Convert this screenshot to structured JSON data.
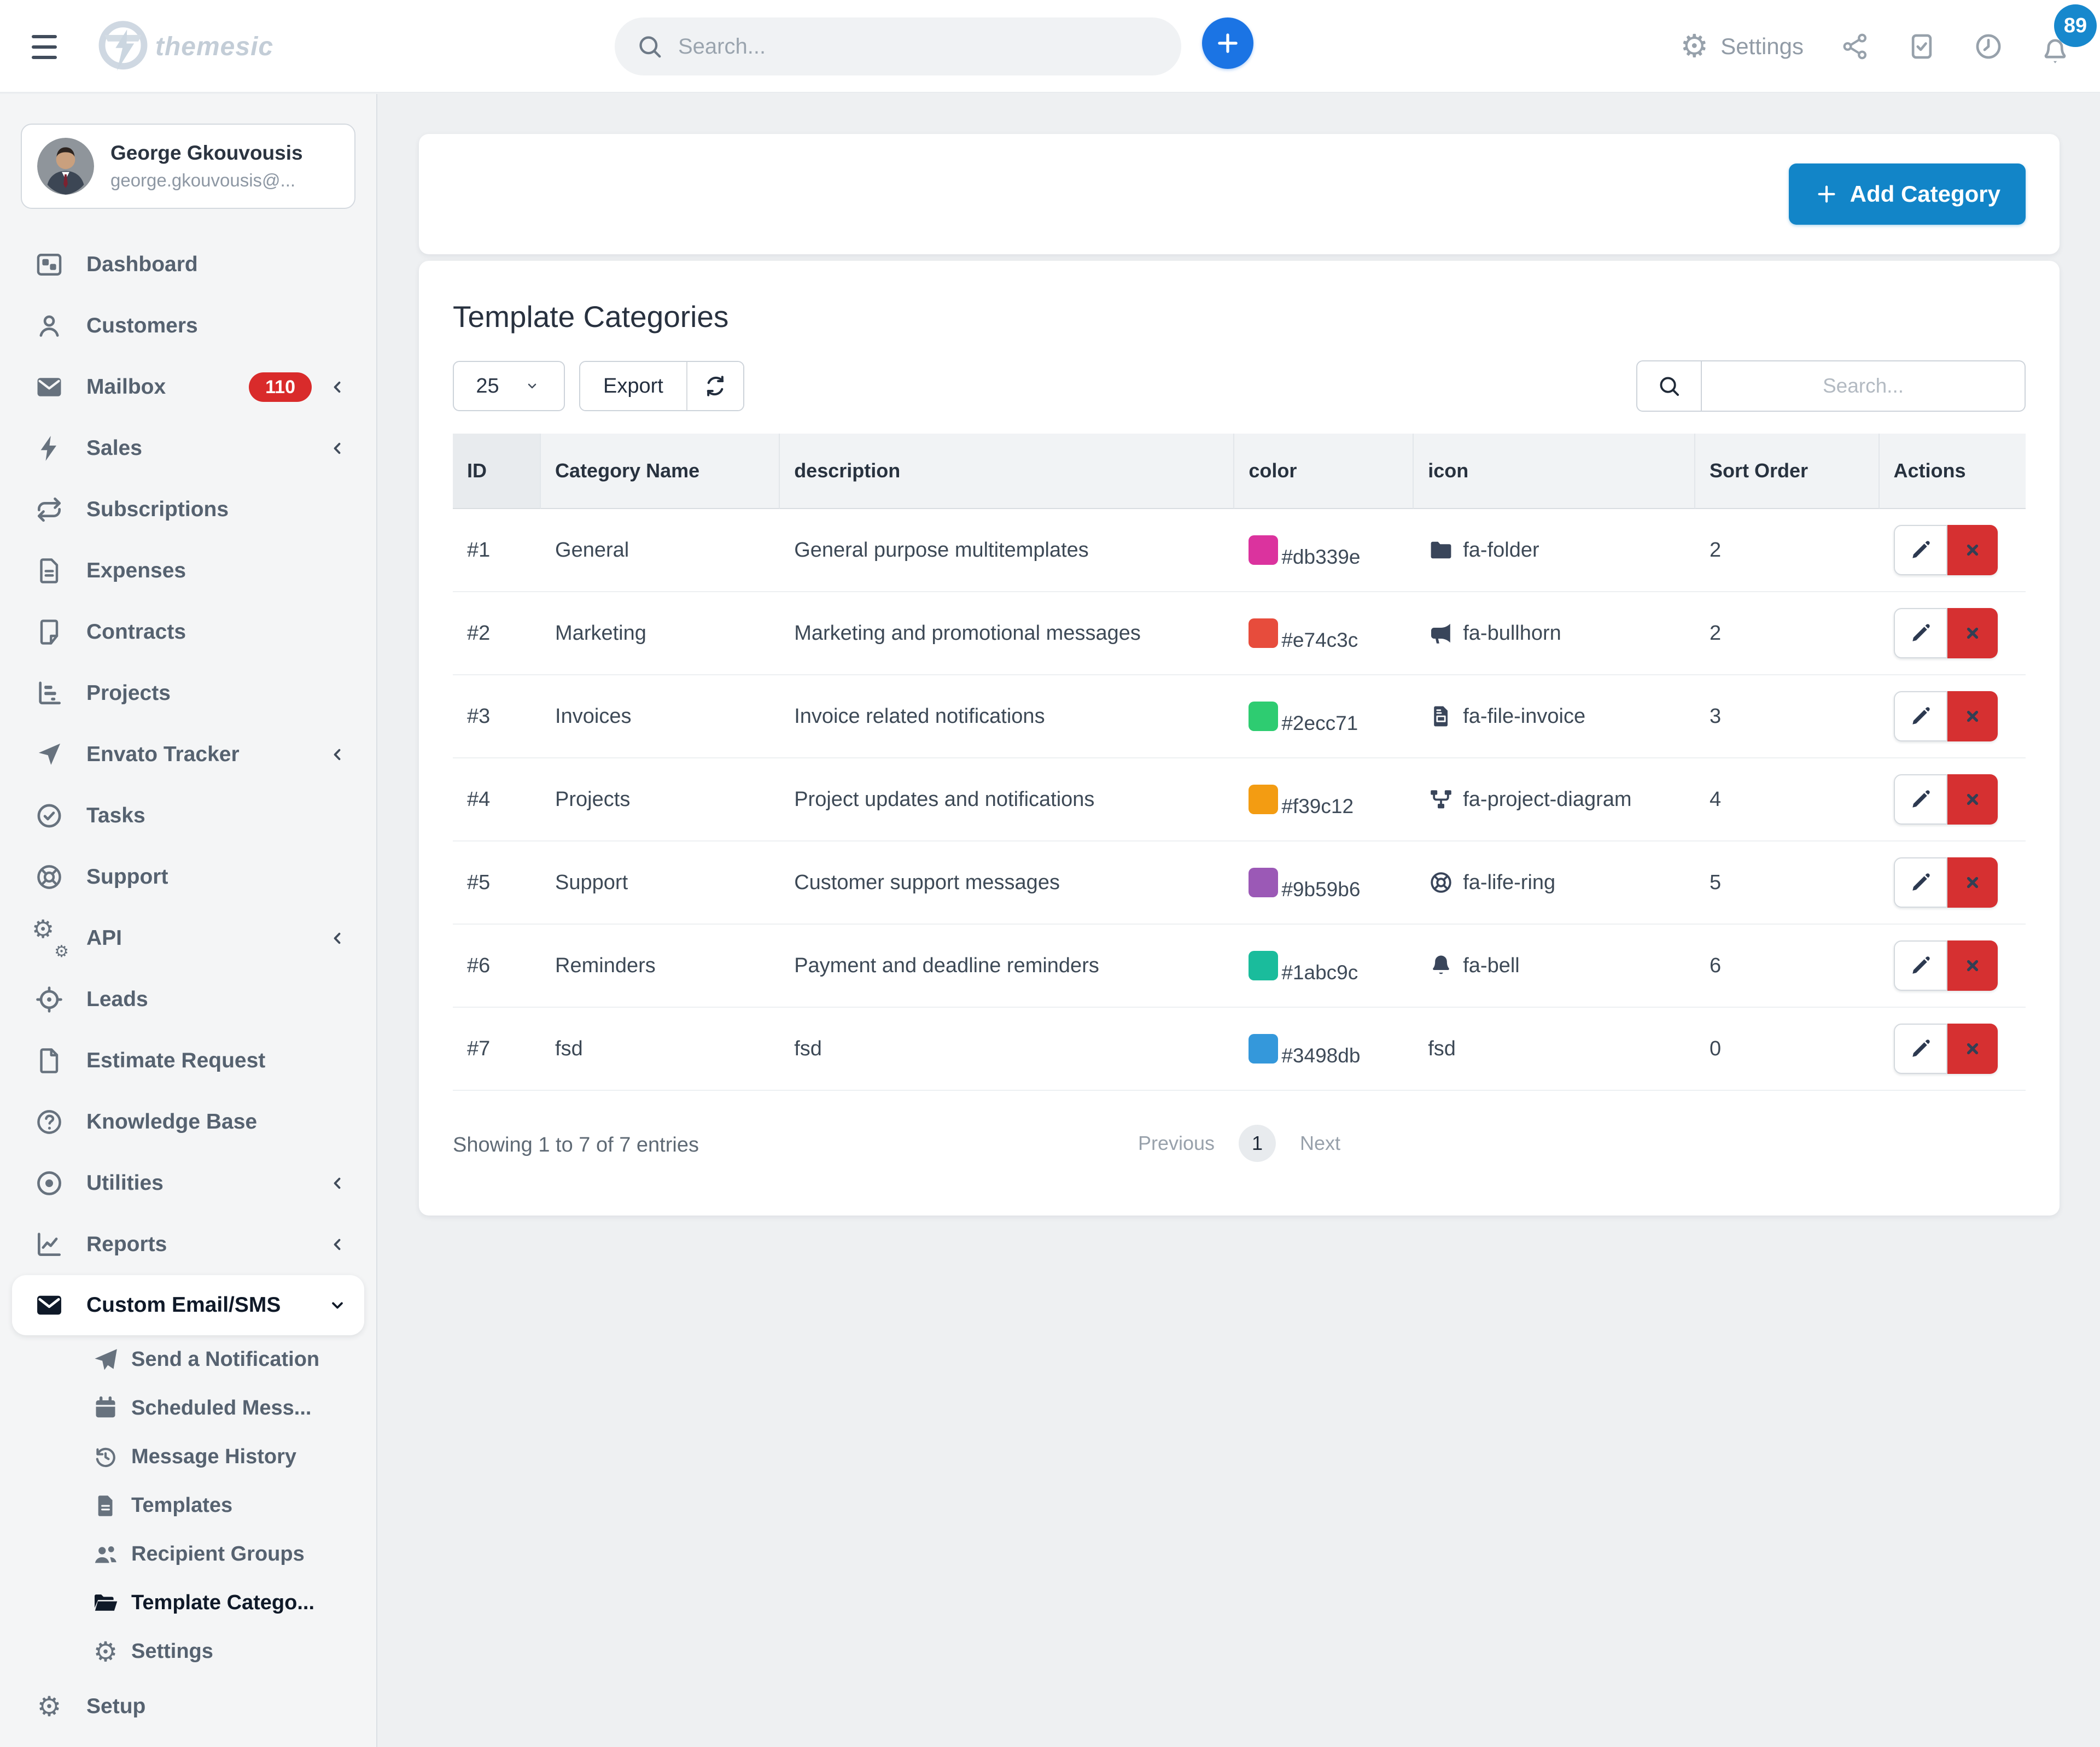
{
  "topbar": {
    "brand": "themesic",
    "search_placeholder": "Search...",
    "settings_label": "Settings",
    "notification_count": "89"
  },
  "sidebar": {
    "user": {
      "name": "George Gkouvousis",
      "email": "george.gkouvousis@..."
    },
    "items": [
      {
        "label": "Dashboard",
        "icon": "dashboard"
      },
      {
        "label": "Customers",
        "icon": "customers"
      },
      {
        "label": "Mailbox",
        "icon": "mailbox",
        "badge": "110",
        "chevron": "left"
      },
      {
        "label": "Sales",
        "icon": "sales",
        "chevron": "left"
      },
      {
        "label": "Subscriptions",
        "icon": "subscriptions"
      },
      {
        "label": "Expenses",
        "icon": "expenses"
      },
      {
        "label": "Contracts",
        "icon": "contracts"
      },
      {
        "label": "Projects",
        "icon": "projects"
      },
      {
        "label": "Envato Tracker",
        "icon": "envato",
        "chevron": "left"
      },
      {
        "label": "Tasks",
        "icon": "tasks"
      },
      {
        "label": "Support",
        "icon": "support"
      },
      {
        "label": "API",
        "icon": "api",
        "chevron": "left"
      },
      {
        "label": "Leads",
        "icon": "leads"
      },
      {
        "label": "Estimate Request",
        "icon": "estimate"
      },
      {
        "label": "Knowledge Base",
        "icon": "knowledge"
      },
      {
        "label": "Utilities",
        "icon": "utilities",
        "chevron": "left"
      },
      {
        "label": "Reports",
        "icon": "reports",
        "chevron": "left"
      },
      {
        "label": "Custom Email/SMS",
        "icon": "email",
        "chevron": "down",
        "active": true
      },
      {
        "label": "Send a Notification",
        "icon": "send",
        "sub": true
      },
      {
        "label": "Scheduled Mess...",
        "icon": "calendar",
        "sub": true
      },
      {
        "label": "Message History",
        "icon": "history",
        "sub": true
      },
      {
        "label": "Templates",
        "icon": "templates",
        "sub": true
      },
      {
        "label": "Recipient Groups",
        "icon": "users",
        "sub": true
      },
      {
        "label": "Template Catego...",
        "icon": "folder-open",
        "sub": true,
        "active": true
      },
      {
        "label": "Settings",
        "icon": "gear",
        "sub": true
      },
      {
        "label": "Setup",
        "icon": "gear"
      }
    ]
  },
  "page": {
    "title": "Template Categories",
    "header": {
      "add_label": "Add Category"
    },
    "controls": {
      "page_size": "25",
      "export_label": "Export",
      "search_placeholder": "Search..."
    },
    "table": {
      "columns": [
        "ID",
        "Category Name",
        "description",
        "color",
        "icon",
        "Sort Order",
        "Actions"
      ],
      "rows": [
        {
          "id": "#1",
          "name": "General",
          "description": "General purpose multitemplates",
          "color": "#db339e",
          "icon_label": "fa-folder",
          "icon": "folder",
          "sort": "2"
        },
        {
          "id": "#2",
          "name": "Marketing",
          "description": "Marketing and promotional messages",
          "color": "#e74c3c",
          "icon_label": "fa-bullhorn",
          "icon": "bullhorn",
          "sort": "2"
        },
        {
          "id": "#3",
          "name": "Invoices",
          "description": "Invoice related notifications",
          "color": "#2ecc71",
          "icon_label": "fa-file-invoice",
          "icon": "file-invoice",
          "sort": "3"
        },
        {
          "id": "#4",
          "name": "Projects",
          "description": "Project updates and notifications",
          "color": "#f39c12",
          "icon_label": "fa-project-diagram",
          "icon": "project-diagram",
          "sort": "4"
        },
        {
          "id": "#5",
          "name": "Support",
          "description": "Customer support messages",
          "color": "#9b59b6",
          "icon_label": "fa-life-ring",
          "icon": "life-ring",
          "sort": "5"
        },
        {
          "id": "#6",
          "name": "Reminders",
          "description": "Payment and deadline reminders",
          "color": "#1abc9c",
          "icon_label": "fa-bell",
          "icon": "bell",
          "sort": "6"
        },
        {
          "id": "#7",
          "name": "fsd",
          "description": "fsd",
          "color": "#3498db",
          "icon_label": "fsd",
          "icon": null,
          "sort": "0"
        }
      ]
    },
    "footer": {
      "showing": "Showing 1 to 7 of 7 entries",
      "previous": "Previous",
      "page": "1",
      "next": "Next"
    }
  },
  "colors": {
    "accent_blue": "#1285c8",
    "round_plus_blue": "#1b74e4",
    "notification_blue": "#1788cd",
    "danger_red": "#d63031",
    "badge_red": "#d92b2b"
  }
}
